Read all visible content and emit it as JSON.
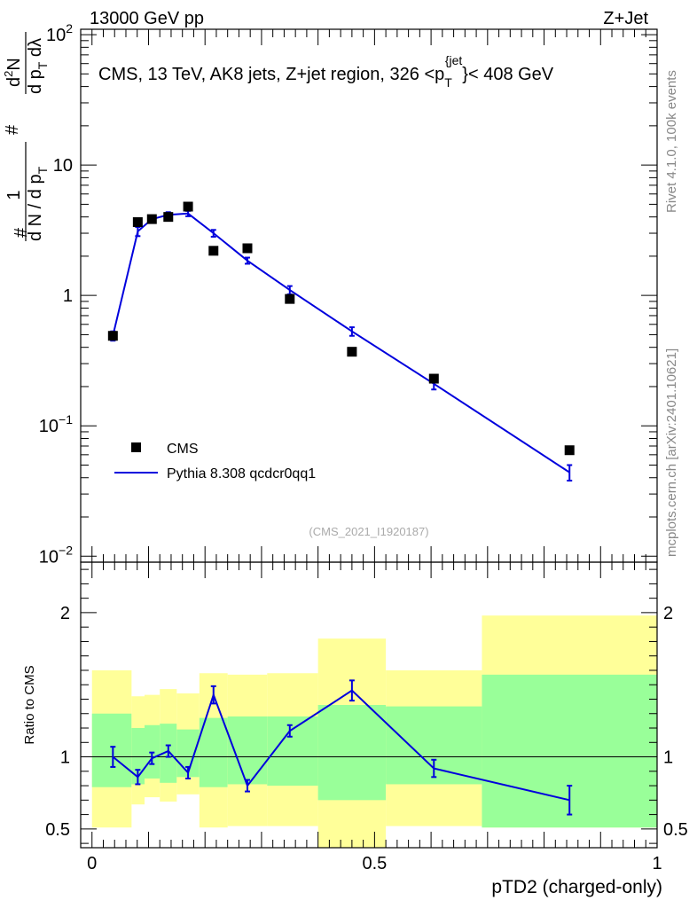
{
  "header": {
    "left": "13000 GeV pp",
    "right": "Z+Jet"
  },
  "side_labels": {
    "rivet": "Rivet 4.1.0,  100k events",
    "mcplots": "mcplots.cern.ch [arXiv:2401.10621]"
  },
  "chart_data": [
    {
      "type": "scatter",
      "panel": "main",
      "title_parts": {
        "prefix": "CMS, 13 TeV, AK8 jets, Z+jet region, 326 <p",
        "sub": "T",
        "sup": "{jet",
        "close": "}< 408 GeV"
      },
      "ylabel": {
        "num_hash": "#",
        "num_one": "1",
        "den": "d N / d p",
        "den_sub": "T",
        "right_hash": "#",
        "right_num": "d",
        "right_num_sup": "2",
        "right_num_tail": "N",
        "right_den": "d p",
        "right_den_sub": "T",
        "right_den_tail": " dλ"
      },
      "yscale": "log",
      "ylim": [
        0.009,
        110
      ],
      "xlim": [
        -0.02,
        1.0
      ],
      "y_ticks": [
        {
          "value": 0.01,
          "base": "10",
          "exp": "−2"
        },
        {
          "value": 0.1,
          "base": "10",
          "exp": "−1"
        },
        {
          "value": 1,
          "base": "1",
          "exp": ""
        },
        {
          "value": 10,
          "base": "10",
          "exp": ""
        },
        {
          "value": 100,
          "base": "10",
          "exp": "2"
        }
      ],
      "legend": [
        {
          "label": "CMS",
          "marker": "square"
        },
        {
          "label": "Pythia 8.308 qcdcr0qq1",
          "marker": "line"
        }
      ],
      "legend_position": "lower-left",
      "watermark": "(CMS_2021_I1920187)",
      "series": [
        {
          "name": "CMS",
          "color": "#000000",
          "x": [
            0.037,
            0.081,
            0.106,
            0.135,
            0.17,
            0.215,
            0.275,
            0.35,
            0.46,
            0.605,
            0.845
          ],
          "y": [
            0.49,
            3.65,
            3.85,
            4.0,
            4.8,
            2.2,
            2.3,
            0.94,
            0.37,
            0.23,
            0.065
          ]
        },
        {
          "name": "Pythia 8.308 qcdcr0qq1",
          "color": "#0000dd",
          "x": [
            0.037,
            0.081,
            0.106,
            0.135,
            0.17,
            0.215,
            0.275,
            0.35,
            0.46,
            0.605,
            0.845
          ],
          "y": [
            0.49,
            3.1,
            3.85,
            4.15,
            4.25,
            3.0,
            1.85,
            1.1,
            0.53,
            0.21,
            0.044
          ],
          "err": [
            0.04,
            0.25,
            0.2,
            0.2,
            0.2,
            0.18,
            0.1,
            0.08,
            0.04,
            0.02,
            0.006
          ]
        }
      ]
    },
    {
      "type": "line",
      "panel": "ratio",
      "ylabel": "Ratio to CMS",
      "xlabel": "pTD2 (charged-only)",
      "ylim": [
        0.37,
        2.35
      ],
      "xlim": [
        -0.02,
        1.0
      ],
      "reference_line": 1,
      "y_ticks": [
        {
          "value": 0.5,
          "label": "0.5"
        },
        {
          "value": 1,
          "label": "1"
        },
        {
          "value": 2,
          "label": "2"
        }
      ],
      "x_ticks": [
        {
          "value": 0,
          "label": "0"
        },
        {
          "value": 0.5,
          "label": "0.5"
        },
        {
          "value": 1,
          "label": "1"
        }
      ],
      "bands": [
        {
          "x0": 0.0,
          "x1": 0.07,
          "outer": [
            0.51,
            1.6
          ],
          "inner": [
            0.79,
            1.3
          ]
        },
        {
          "x0": 0.07,
          "x1": 0.093,
          "outer": [
            0.67,
            1.42
          ],
          "inner": [
            0.81,
            1.2
          ]
        },
        {
          "x0": 0.093,
          "x1": 0.12,
          "outer": [
            0.72,
            1.43
          ],
          "inner": [
            0.85,
            1.22
          ]
        },
        {
          "x0": 0.12,
          "x1": 0.15,
          "outer": [
            0.69,
            1.47
          ],
          "inner": [
            0.82,
            1.23
          ]
        },
        {
          "x0": 0.15,
          "x1": 0.19,
          "outer": [
            0.74,
            1.44
          ],
          "inner": [
            0.86,
            1.19
          ]
        },
        {
          "x0": 0.19,
          "x1": 0.24,
          "outer": [
            0.51,
            1.58
          ],
          "inner": [
            0.79,
            1.27
          ]
        },
        {
          "x0": 0.24,
          "x1": 0.31,
          "outer": [
            0.52,
            1.57
          ],
          "inner": [
            0.81,
            1.28
          ]
        },
        {
          "x0": 0.31,
          "x1": 0.4,
          "outer": [
            0.52,
            1.58
          ],
          "inner": [
            0.8,
            1.28
          ]
        },
        {
          "x0": 0.4,
          "x1": 0.52,
          "outer": [
            0.37,
            1.82
          ],
          "inner": [
            0.7,
            1.36
          ]
        },
        {
          "x0": 0.52,
          "x1": 0.69,
          "outer": [
            0.52,
            1.6
          ],
          "inner": [
            0.81,
            1.35
          ]
        },
        {
          "x0": 0.69,
          "x1": 1.0,
          "outer": [
            0.51,
            1.98
          ],
          "inner": [
            0.51,
            1.57
          ]
        }
      ],
      "band_colors": {
        "outer": "#ffff99",
        "inner": "#99ff99"
      },
      "series": [
        {
          "name": "Pythia 8.308 qcdcr0qq1",
          "color": "#0000dd",
          "x": [
            0.037,
            0.081,
            0.106,
            0.135,
            0.17,
            0.215,
            0.275,
            0.35,
            0.46,
            0.605,
            0.845
          ],
          "y": [
            1.0,
            0.86,
            0.99,
            1.04,
            0.89,
            1.43,
            0.8,
            1.18,
            1.46,
            0.92,
            0.7
          ],
          "err": [
            0.07,
            0.05,
            0.04,
            0.04,
            0.04,
            0.06,
            0.04,
            0.04,
            0.07,
            0.06,
            0.1
          ]
        }
      ]
    }
  ]
}
